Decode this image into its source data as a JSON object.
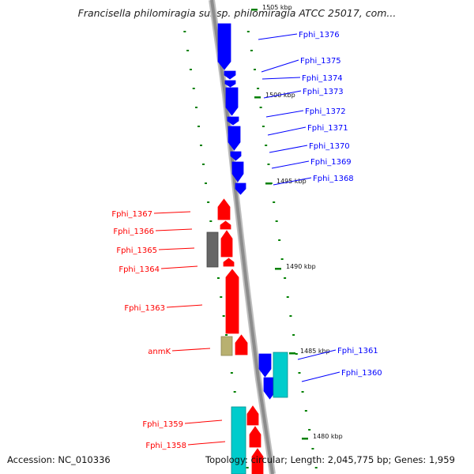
{
  "title": "Francisella philomiragia subsp. philomiragia ATCC 25017, com...",
  "footer": {
    "accession": "Accession: NC_010336",
    "stats": "Topology: circular; Length: 2,045,775 bp; Genes: 1,959"
  },
  "colors": {
    "forward_gene": "#0000ff",
    "reverse_gene": "#ff0000",
    "rna_gene": "#00cccc",
    "grey_gene": "#666666",
    "other_gene": "#b8b070",
    "backbone": "#8c8c8c",
    "tick": "#008000"
  },
  "scale_ticks": [
    {
      "id": "t1505",
      "label": "1505 kbp"
    },
    {
      "id": "t1500",
      "label": "1500 kbp"
    },
    {
      "id": "t1495",
      "label": "1495 kbp"
    },
    {
      "id": "t1490",
      "label": "1490 kbp"
    },
    {
      "id": "t1485",
      "label": "1485 kbp"
    },
    {
      "id": "t1480",
      "label": "1480 kbp"
    }
  ],
  "gene_labels": [
    {
      "id": "g1376",
      "text": "Fphi_1376"
    },
    {
      "id": "g1375",
      "text": "Fphi_1375"
    },
    {
      "id": "g1374",
      "text": "Fphi_1374"
    },
    {
      "id": "g1373",
      "text": "Fphi_1373"
    },
    {
      "id": "g1372",
      "text": "Fphi_1372"
    },
    {
      "id": "g1371",
      "text": "Fphi_1371"
    },
    {
      "id": "g1370",
      "text": "Fphi_1370"
    },
    {
      "id": "g1369",
      "text": "Fphi_1369"
    },
    {
      "id": "g1368",
      "text": "Fphi_1368"
    },
    {
      "id": "g1367",
      "text": "Fphi_1367"
    },
    {
      "id": "g1366",
      "text": "Fphi_1366"
    },
    {
      "id": "g1365",
      "text": "Fphi_1365"
    },
    {
      "id": "g1364",
      "text": "Fphi_1364"
    },
    {
      "id": "g1363",
      "text": "Fphi_1363"
    },
    {
      "id": "anmK",
      "text": "anmK"
    },
    {
      "id": "g1361",
      "text": "Fphi_1361"
    },
    {
      "id": "g1360",
      "text": "Fphi_1360"
    },
    {
      "id": "g1359",
      "text": "Fphi_1359"
    },
    {
      "id": "g1358",
      "text": "Fphi_1358"
    }
  ]
}
